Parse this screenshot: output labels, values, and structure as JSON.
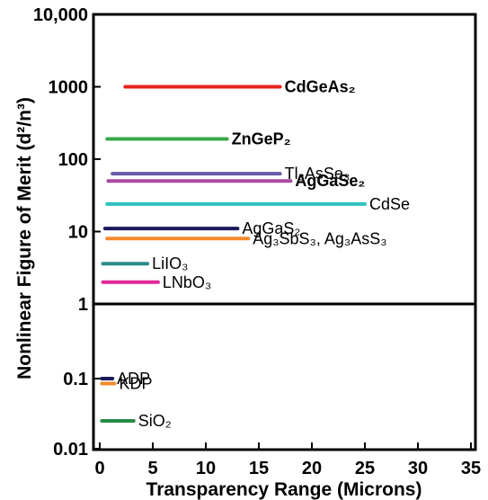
{
  "chart_data": {
    "type": "range",
    "title": "",
    "xlabel": "Transparency Range (Microns)",
    "ylabel": "Nonlinear Figure of Merit (d²/n³)",
    "xlim": [
      0,
      35
    ],
    "x_ticks": [
      "0",
      "5",
      "10",
      "15",
      "20",
      "25",
      "30",
      "35"
    ],
    "y_scale": "log",
    "y_ticks": [
      "10,000",
      "1000",
      "100",
      "10",
      "1",
      "0.1",
      "0.01"
    ],
    "grid": false,
    "series": [
      {
        "label": "CdGeAs₂",
        "x_start": 2.4,
        "x_end": 17,
        "y": 1000,
        "color": "#e8231e",
        "label_color": "#e8231e",
        "bold": true
      },
      {
        "label": "ZnGeP₂",
        "x_start": 0.7,
        "x_end": 12,
        "y": 190,
        "color": "#3aa84a",
        "label_color": "#000000",
        "bold": true
      },
      {
        "label": "Tl₃AsSe₃",
        "x_start": 1.2,
        "x_end": 17,
        "y": 63,
        "color": "#6a5aa8",
        "label_color": "#000000",
        "bold": false
      },
      {
        "label": "AgGaSe₂",
        "x_start": 0.8,
        "x_end": 18,
        "y": 50,
        "color": "#a84aa0",
        "label_color": "#000000",
        "bold": true
      },
      {
        "label": "CdSe",
        "x_start": 0.7,
        "x_end": 25,
        "y": 24,
        "color": "#2ec0c0",
        "label_color": "#000000",
        "bold": false
      },
      {
        "label": "AgGaS₂",
        "x_start": 0.5,
        "x_end": 13,
        "y": 11,
        "color": "#1a1a5a",
        "label_color": "#000000",
        "bold": false
      },
      {
        "label": "Ag₃SbS₃, Ag₃AsS₃",
        "x_start": 0.7,
        "x_end": 14,
        "y": 8,
        "color": "#f28a2e",
        "label_color": "#000000",
        "bold": false
      },
      {
        "label": "LiIO₃",
        "x_start": 0.3,
        "x_end": 4.5,
        "y": 3.6,
        "color": "#2a8a8a",
        "label_color": "#000000",
        "bold": false
      },
      {
        "label": "LNbO₃",
        "x_start": 0.3,
        "x_end": 5.5,
        "y": 2.0,
        "color": "#e0289a",
        "label_color": "#000000",
        "bold": false
      },
      {
        "label": "ADP",
        "x_start": 0.2,
        "x_end": 1.2,
        "y": 0.1,
        "color": "#1a1a5a",
        "label_color": "#000000",
        "bold": false
      },
      {
        "label": "KDP",
        "x_start": 0.2,
        "x_end": 1.4,
        "y": 0.085,
        "color": "#f28a2e",
        "label_color": "#000000",
        "bold": false
      },
      {
        "label": "SiO₂",
        "x_start": 0.2,
        "x_end": 3.2,
        "y": 0.025,
        "color": "#2a8a4a",
        "label_color": "#000000",
        "bold": false
      }
    ]
  }
}
